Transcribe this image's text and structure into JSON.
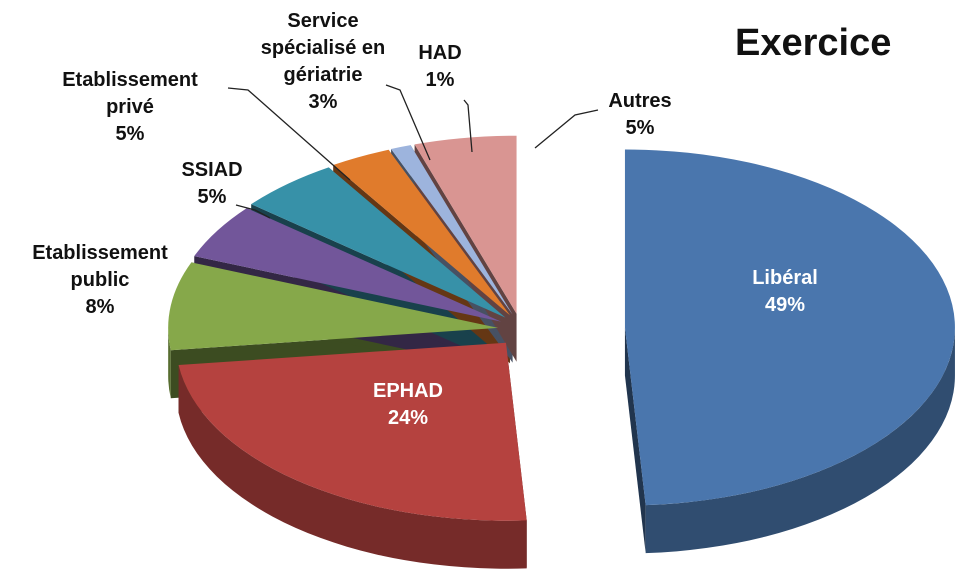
{
  "chart_data": {
    "type": "pie3d",
    "title": "Exercice",
    "categories": [
      "Libéral",
      "EPHAD",
      "Etablissement public",
      "SSIAD",
      "Etablissement privé",
      "Service spécialisé en gériatrie",
      "HAD",
      "Autres"
    ],
    "values": [
      49,
      24,
      8,
      5,
      5,
      3,
      1,
      5
    ],
    "value_labels": [
      "49%",
      "24%",
      "8%",
      "5%",
      "5%",
      "3%",
      "1%",
      "5%"
    ],
    "colors": [
      "#4a76ad",
      "#b5423f",
      "#86a84a",
      "#72569a",
      "#3791a8",
      "#e07b2c",
      "#9db4dd",
      "#d99592"
    ]
  }
}
